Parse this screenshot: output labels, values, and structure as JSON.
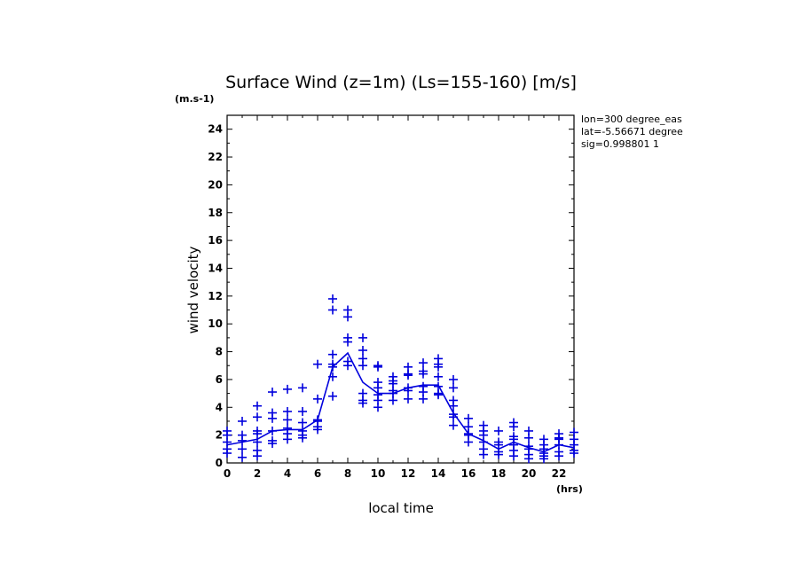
{
  "chart_data": {
    "type": "scatter",
    "title": "Surface Wind (z=1m) (Ls=155-160) [m/s]",
    "xlabel": "local time",
    "ylabel": "wind velocity",
    "x_unit": "(hrs)",
    "y_unit": "(m.s-1)",
    "xlim": [
      0,
      23
    ],
    "ylim": [
      0,
      25
    ],
    "xticks": [
      0,
      2,
      4,
      6,
      8,
      10,
      12,
      14,
      16,
      18,
      20,
      22
    ],
    "yticks": [
      0,
      2,
      4,
      6,
      8,
      10,
      12,
      14,
      16,
      18,
      20,
      22,
      24
    ],
    "grid": false,
    "info": [
      "lon=300 degree_eas",
      "lat=-5.56671 degree",
      "sig=0.998801 1"
    ],
    "color": "#0000dd",
    "series": [
      {
        "type": "scatter",
        "points": [
          [
            0,
            2.3
          ],
          [
            0,
            2.0
          ],
          [
            0,
            1.5
          ],
          [
            0,
            1.0
          ],
          [
            0,
            0.7
          ],
          [
            1,
            3.0
          ],
          [
            1,
            2.0
          ],
          [
            1,
            1.6
          ],
          [
            1,
            1.0
          ],
          [
            1,
            0.4
          ],
          [
            2,
            4.1
          ],
          [
            2,
            3.3
          ],
          [
            2,
            2.3
          ],
          [
            2,
            2.1
          ],
          [
            2,
            1.5
          ],
          [
            2,
            0.9
          ],
          [
            2,
            0.5
          ],
          [
            3,
            5.1
          ],
          [
            3,
            3.6
          ],
          [
            3,
            3.2
          ],
          [
            3,
            2.3
          ],
          [
            3,
            1.6
          ],
          [
            3,
            1.4
          ],
          [
            4,
            5.3
          ],
          [
            4,
            3.7
          ],
          [
            4,
            3.1
          ],
          [
            4,
            2.5
          ],
          [
            4,
            2.1
          ],
          [
            4,
            1.7
          ],
          [
            5,
            5.4
          ],
          [
            5,
            3.7
          ],
          [
            5,
            2.9
          ],
          [
            5,
            2.3
          ],
          [
            5,
            2.0
          ],
          [
            5,
            1.8
          ],
          [
            6,
            7.1
          ],
          [
            6,
            4.6
          ],
          [
            6,
            3.1
          ],
          [
            6,
            3.0
          ],
          [
            6,
            2.6
          ],
          [
            6,
            2.4
          ],
          [
            7,
            11.8
          ],
          [
            7,
            11.0
          ],
          [
            7,
            7.8
          ],
          [
            7,
            7.1
          ],
          [
            7,
            6.9
          ],
          [
            7,
            6.2
          ],
          [
            7,
            4.8
          ],
          [
            8,
            11.0
          ],
          [
            8,
            10.5
          ],
          [
            8,
            9.0
          ],
          [
            8,
            8.7
          ],
          [
            8,
            7.3
          ],
          [
            8,
            7.0
          ],
          [
            9,
            9.0
          ],
          [
            9,
            8.1
          ],
          [
            9,
            7.5
          ],
          [
            9,
            7.0
          ],
          [
            9,
            5.0
          ],
          [
            9,
            4.5
          ],
          [
            9,
            4.3
          ],
          [
            10,
            7.0
          ],
          [
            10,
            6.9
          ],
          [
            10,
            5.8
          ],
          [
            10,
            5.4
          ],
          [
            10,
            4.9
          ],
          [
            10,
            4.5
          ],
          [
            10,
            4.0
          ],
          [
            11,
            6.2
          ],
          [
            11,
            5.9
          ],
          [
            11,
            5.7
          ],
          [
            11,
            5.2
          ],
          [
            11,
            5.0
          ],
          [
            11,
            4.5
          ],
          [
            12,
            6.9
          ],
          [
            12,
            6.4
          ],
          [
            12,
            6.3
          ],
          [
            12,
            5.4
          ],
          [
            12,
            5.2
          ],
          [
            12,
            4.6
          ],
          [
            13,
            7.2
          ],
          [
            13,
            6.6
          ],
          [
            13,
            6.4
          ],
          [
            13,
            5.5
          ],
          [
            13,
            5.1
          ],
          [
            13,
            4.6
          ],
          [
            14,
            7.5
          ],
          [
            14,
            7.1
          ],
          [
            14,
            6.9
          ],
          [
            14,
            6.2
          ],
          [
            14,
            5.5
          ],
          [
            14,
            5.0
          ],
          [
            14,
            4.9
          ],
          [
            15,
            6.0
          ],
          [
            15,
            5.4
          ],
          [
            15,
            4.5
          ],
          [
            15,
            4.1
          ],
          [
            15,
            3.5
          ],
          [
            15,
            3.3
          ],
          [
            15,
            2.7
          ],
          [
            16,
            3.2
          ],
          [
            16,
            2.6
          ],
          [
            16,
            2.1
          ],
          [
            16,
            2.0
          ],
          [
            16,
            1.5
          ],
          [
            17,
            2.7
          ],
          [
            17,
            2.3
          ],
          [
            17,
            2.0
          ],
          [
            17,
            1.5
          ],
          [
            17,
            1.0
          ],
          [
            17,
            0.6
          ],
          [
            18,
            2.3
          ],
          [
            18,
            1.5
          ],
          [
            18,
            1.3
          ],
          [
            18,
            0.8
          ],
          [
            18,
            0.6
          ],
          [
            19,
            2.9
          ],
          [
            19,
            2.6
          ],
          [
            19,
            1.9
          ],
          [
            19,
            1.7
          ],
          [
            19,
            1.3
          ],
          [
            19,
            0.9
          ],
          [
            19,
            0.5
          ],
          [
            20,
            2.3
          ],
          [
            20,
            1.8
          ],
          [
            20,
            1.2
          ],
          [
            20,
            1.0
          ],
          [
            20,
            0.6
          ],
          [
            20,
            0.3
          ],
          [
            21,
            1.7
          ],
          [
            21,
            1.3
          ],
          [
            21,
            1.0
          ],
          [
            21,
            0.7
          ],
          [
            21,
            0.5
          ],
          [
            21,
            0.3
          ],
          [
            22,
            2.1
          ],
          [
            22,
            1.8
          ],
          [
            22,
            1.7
          ],
          [
            22,
            1.3
          ],
          [
            22,
            0.8
          ],
          [
            22,
            0.5
          ],
          [
            23,
            2.2
          ],
          [
            23,
            1.7
          ],
          [
            23,
            1.3
          ],
          [
            23,
            0.9
          ],
          [
            23,
            0.7
          ]
        ]
      },
      {
        "type": "line",
        "x": [
          0,
          1,
          2,
          3,
          4,
          5,
          6,
          7,
          8,
          9,
          10,
          11,
          12,
          13,
          14,
          15,
          16,
          17,
          18,
          19,
          20,
          21,
          22,
          23
        ],
        "values": [
          1.3,
          1.5,
          1.7,
          2.3,
          2.4,
          2.4,
          3.1,
          6.9,
          7.9,
          5.8,
          5.0,
          5.0,
          5.4,
          5.6,
          5.6,
          3.6,
          2.1,
          1.6,
          1.0,
          1.5,
          1.1,
          0.8,
          1.3,
          1.1
        ]
      }
    ]
  }
}
